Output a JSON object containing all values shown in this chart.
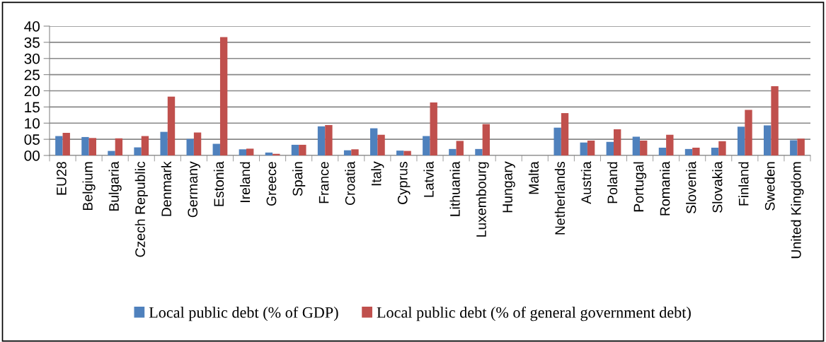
{
  "chart_data": {
    "type": "bar",
    "categories": [
      "EU28",
      "Belgium",
      "Bulgaria",
      "Czech Republic",
      "Denmark",
      "Germany",
      "Estonia",
      "Ireland",
      "Greece",
      "Spain",
      "France",
      "Croatia",
      "Italy",
      "Cyprus",
      "Latvia",
      "Lithuania",
      "Luxembourg",
      "Hungary",
      "Malta",
      "Netherlands",
      "Austria",
      "Poland",
      "Portugal",
      "Romania",
      "Slovenia",
      "Slovakia",
      "Finland",
      "Sweden",
      "United Kingdom"
    ],
    "series": [
      {
        "name": "Local public debt (% of GDP)",
        "color": "#4f81bd",
        "values": [
          6.0,
          5.7,
          1.4,
          2.5,
          7.3,
          5.1,
          3.6,
          1.9,
          0.9,
          3.3,
          9.0,
          1.6,
          8.4,
          1.5,
          6.0,
          2.0,
          2.0,
          null,
          null,
          8.6,
          4.0,
          4.2,
          5.8,
          2.4,
          2.0,
          2.4,
          8.9,
          9.3,
          4.7
        ]
      },
      {
        "name": "Local public debt (% of general government debt)",
        "color": "#c0504d",
        "values": [
          7.0,
          5.4,
          5.3,
          6.0,
          18.2,
          7.1,
          36.6,
          2.1,
          0.5,
          3.3,
          9.4,
          1.9,
          6.4,
          1.4,
          16.4,
          4.5,
          9.7,
          null,
          null,
          13.1,
          4.6,
          8.1,
          4.6,
          6.4,
          2.4,
          4.4,
          14.1,
          21.4,
          5.2
        ]
      }
    ],
    "ylim": [
      0,
      40
    ],
    "yticks": [
      {
        "value": 0,
        "label": "00"
      },
      {
        "value": 5,
        "label": "05"
      },
      10,
      15,
      20,
      25,
      30,
      35,
      40
    ],
    "grid": "y",
    "legend": "bottom"
  }
}
